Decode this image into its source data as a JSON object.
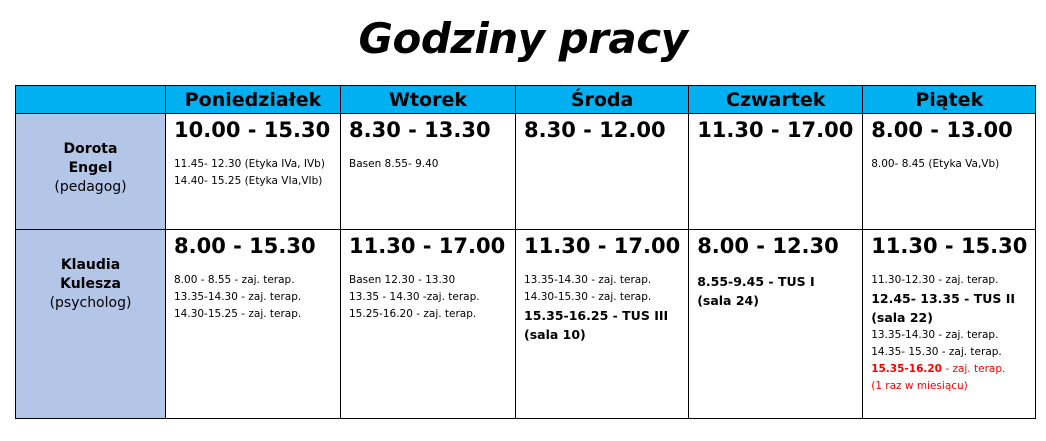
{
  "title": "Godziny pracy",
  "days": [
    "Poniedziałek",
    "Wtorek",
    "Środa",
    "Czwartek",
    "Piątek"
  ],
  "rows": [
    {
      "name1": "Dorota",
      "name2": "Engel",
      "role": "(pedagog)",
      "cells": [
        {
          "hours": "10.00 - 15.30",
          "lines": [
            {
              "segs": [
                {
                  "t": "11.45- 12.30 (Etyka IVa, IVb)"
                }
              ]
            },
            {
              "segs": [
                {
                  "t": "14.40- 15.25 (Etyka VIa,VIb)"
                }
              ]
            }
          ]
        },
        {
          "hours": "8.30 - 13.30",
          "lines": [
            {
              "segs": [
                {
                  "t": "Basen 8.55- 9.40"
                }
              ]
            }
          ]
        },
        {
          "hours": "8.30 - 12.00",
          "lines": []
        },
        {
          "hours": "11.30 - 17.00",
          "lines": []
        },
        {
          "hours": "8.00 - 13.00",
          "lines": [
            {
              "segs": [
                {
                  "t": "8.00- 8.45 (Etyka Va,Vb)"
                }
              ]
            }
          ]
        }
      ]
    },
    {
      "name1": "Klaudia",
      "name2": "Kulesza",
      "role": "(psycholog)",
      "cells": [
        {
          "hours": "8.00 - 15.30",
          "lines": [
            {
              "segs": [
                {
                  "t": "8.00 - 8.55 - zaj. terap."
                }
              ]
            },
            {
              "segs": [
                {
                  "t": "13.35-14.30 - zaj. terap."
                }
              ]
            },
            {
              "segs": [
                {
                  "t": "14.30-15.25 - zaj. terap."
                }
              ]
            }
          ]
        },
        {
          "hours": "11.30 - 17.00",
          "lines": [
            {
              "segs": [
                {
                  "t": "Basen 12.30 - 13.30"
                }
              ]
            },
            {
              "segs": [
                {
                  "t": "13.35 - 14.30 -zaj. terap."
                }
              ]
            },
            {
              "segs": [
                {
                  "t": "15.25-16.20 -  zaj. terap."
                }
              ]
            }
          ]
        },
        {
          "hours": "11.30 - 17.00",
          "lines": [
            {
              "segs": [
                {
                  "t": "13.35-14.30 - zaj. terap."
                }
              ]
            },
            {
              "segs": [
                {
                  "t": "14.30-15.30 - zaj. terap."
                }
              ]
            },
            {
              "bold": true,
              "segs": [
                {
                  "t": "15.35-16.25 - TUS III"
                }
              ]
            },
            {
              "bold": true,
              "segs": [
                {
                  "t": "(sala 10)"
                }
              ]
            }
          ]
        },
        {
          "hours": "8.00 - 12.30",
          "lines": [
            {
              "bold": true,
              "segs": [
                {
                  "t": "8.55-9.45 - TUS I"
                }
              ]
            },
            {
              "bold": true,
              "segs": [
                {
                  "t": "(sala 24)"
                }
              ]
            }
          ]
        },
        {
          "hours": "11.30 - 15.30",
          "lines": [
            {
              "segs": [
                {
                  "t": "11.30-12.30 - zaj. terap."
                }
              ]
            },
            {
              "bold": true,
              "segs": [
                {
                  "t": "12.45- 13.35 - TUS II"
                }
              ]
            },
            {
              "bold": true,
              "segs": [
                {
                  "t": "(sala 22)"
                }
              ]
            },
            {
              "segs": [
                {
                  "t": "13.35-14.30 - zaj. terap."
                }
              ]
            },
            {
              "segs": [
                {
                  "t": "14.35- 15.30 - zaj. terap."
                }
              ]
            },
            {
              "segs": [
                {
                  "t": "15.35-16.20",
                  "red": true,
                  "bold": true
                },
                {
                  "t": " - zaj. terap.",
                  "red": true
                }
              ]
            },
            {
              "segs": [
                {
                  "t": "(1 raz w miesiącu)",
                  "red": true
                }
              ]
            }
          ]
        }
      ]
    }
  ],
  "colors": {
    "header": "#00b0f0",
    "name_column": "#b4c6e7",
    "highlight": "#ff0000"
  }
}
